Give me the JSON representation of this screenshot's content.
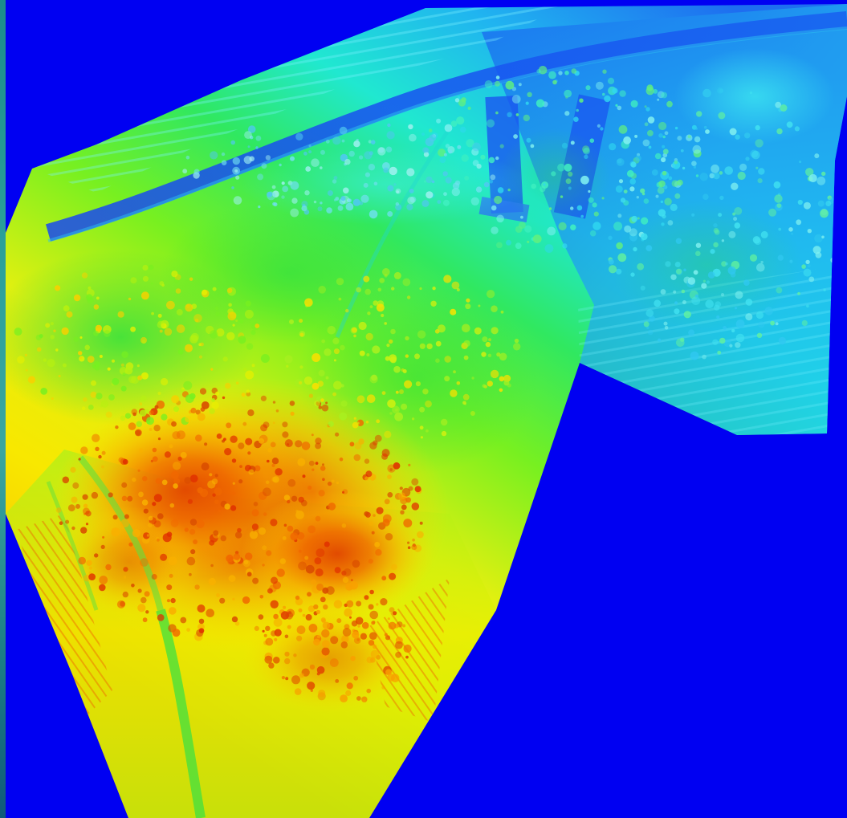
{
  "map": {
    "type": "elevation-heatmap",
    "background_color": "#0000f2",
    "colormap": [
      "#0a2cf0",
      "#1e7af0",
      "#20c8f0",
      "#20e8c0",
      "#30e860",
      "#7cf020",
      "#d8f010",
      "#f8f000",
      "#f8b000",
      "#f07000",
      "#e03000"
    ],
    "high_value_color": "#e03000",
    "low_value_color": "#0a2cf0",
    "nodata_color": "#0000f2"
  }
}
